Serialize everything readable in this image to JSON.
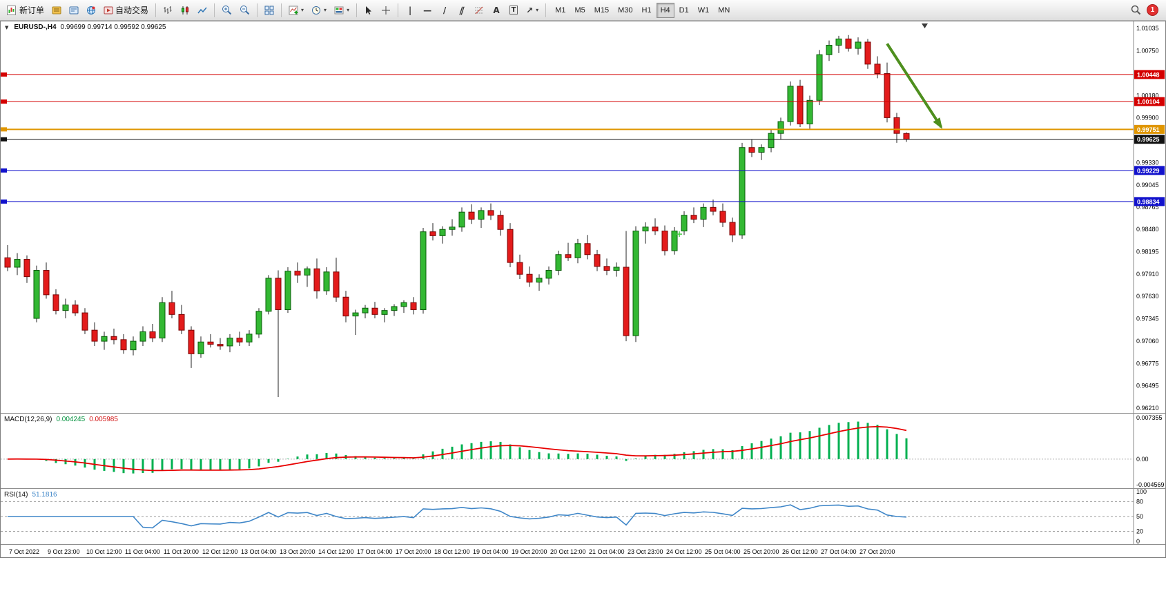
{
  "toolbar": {
    "new_order_label": "新订单",
    "autotrade_label": "自动交易",
    "timeframes": [
      "M1",
      "M5",
      "M15",
      "M30",
      "H1",
      "H4",
      "D1",
      "W1",
      "MN"
    ],
    "active_timeframe": "H4",
    "notification_count": "1",
    "glyphs": {
      "vertical_line": "|",
      "horizontal_line": "—",
      "trendline": "/",
      "channel": "∥",
      "text_tool": "A",
      "text_label_tool": "T",
      "arrows_tool": "↗",
      "caret": "▾"
    }
  },
  "chart": {
    "collapse_arrow": "▼",
    "title": "EURUSD-,H4",
    "ohlc": "0.99699 0.99714 0.99592 0.99625"
  },
  "macd_header": {
    "name": "MACD(12,26,9)",
    "main_value": "0.004245",
    "signal_value": "0.005985"
  },
  "rsi_header": {
    "name": "RSI(14)",
    "value": "51.1816"
  },
  "chart_data": {
    "type": "candlestick",
    "symbol": "EURUSD-",
    "timeframe": "H4",
    "main": {
      "price_min": 0.9621,
      "price_max": 1.01035,
      "axis_ticks": [
        "1.01035",
        "1.00750",
        "1.00180",
        "0.99900",
        "0.99330",
        "0.99045",
        "0.98765",
        "0.98480",
        "0.98195",
        "0.97910",
        "0.97630",
        "0.97345",
        "0.97060",
        "0.96775",
        "0.96495",
        "0.96210"
      ],
      "hlines": [
        {
          "price": 1.00448,
          "label": "1.00448",
          "color": "#d40000",
          "width": 1,
          "type": "resistance"
        },
        {
          "price": 1.00104,
          "label": "1.00104",
          "color": "#d40000",
          "width": 1,
          "type": "resistance"
        },
        {
          "price": 0.99751,
          "label": "0.99751",
          "color": "#e09600",
          "width": 2,
          "type": "pivot"
        },
        {
          "price": 0.99625,
          "label": "0.99625",
          "color": "#111111",
          "width": 1,
          "type": "current-price"
        },
        {
          "price": 0.99229,
          "label": "0.99229",
          "color": "#1212cc",
          "width": 1,
          "type": "support"
        },
        {
          "price": 0.98834,
          "label": "0.98834",
          "color": "#1212cc",
          "width": 1,
          "type": "support"
        }
      ],
      "colors": {
        "bull": "#33b833",
        "bull_border": "#0a5c0a",
        "bear": "#e31b1b",
        "bear_border": "#7a0505",
        "wick": "#222222"
      },
      "arrow_annotation": {
        "from": {
          "index": 91,
          "price": 1.0084
        },
        "to": {
          "index": 96.6,
          "price": 0.9978
        },
        "color": "#4e8f1e"
      },
      "plus_marker": {
        "index": 69.5,
        "price": 0.9842,
        "color": "#44cc44"
      },
      "candles": [
        [
          0.9812,
          0.9828,
          0.9795,
          0.98
        ],
        [
          0.98,
          0.9818,
          0.979,
          0.981
        ],
        [
          0.981,
          0.9815,
          0.978,
          0.9788
        ],
        [
          0.9735,
          0.9802,
          0.973,
          0.9796
        ],
        [
          0.9796,
          0.9806,
          0.976,
          0.9765
        ],
        [
          0.9765,
          0.9772,
          0.974,
          0.9745
        ],
        [
          0.9745,
          0.976,
          0.9735,
          0.9752
        ],
        [
          0.9752,
          0.9758,
          0.9738,
          0.9742
        ],
        [
          0.9742,
          0.9748,
          0.9715,
          0.972
        ],
        [
          0.972,
          0.973,
          0.97,
          0.9706
        ],
        [
          0.9706,
          0.9718,
          0.9695,
          0.9712
        ],
        [
          0.9712,
          0.9722,
          0.9702,
          0.9708
        ],
        [
          0.9708,
          0.9715,
          0.969,
          0.9695
        ],
        [
          0.9695,
          0.9712,
          0.9688,
          0.9706
        ],
        [
          0.9706,
          0.9725,
          0.97,
          0.9718
        ],
        [
          0.9718,
          0.9728,
          0.9705,
          0.971
        ],
        [
          0.971,
          0.9762,
          0.9705,
          0.9755
        ],
        [
          0.9755,
          0.977,
          0.9735,
          0.974
        ],
        [
          0.974,
          0.9752,
          0.9715,
          0.972
        ],
        [
          0.972,
          0.9725,
          0.9672,
          0.969
        ],
        [
          0.969,
          0.9712,
          0.9685,
          0.9705
        ],
        [
          0.9705,
          0.9715,
          0.9698,
          0.9702
        ],
        [
          0.9702,
          0.971,
          0.9695,
          0.97
        ],
        [
          0.97,
          0.9715,
          0.9692,
          0.971
        ],
        [
          0.971,
          0.9718,
          0.97,
          0.9705
        ],
        [
          0.9705,
          0.972,
          0.97,
          0.9715
        ],
        [
          0.9715,
          0.9748,
          0.971,
          0.9744
        ],
        [
          0.9744,
          0.979,
          0.974,
          0.9786
        ],
        [
          0.9786,
          0.9796,
          0.9635,
          0.9746
        ],
        [
          0.9746,
          0.98,
          0.9742,
          0.9795
        ],
        [
          0.9795,
          0.9806,
          0.978,
          0.979
        ],
        [
          0.979,
          0.9801,
          0.9775,
          0.9798
        ],
        [
          0.9798,
          0.9811,
          0.976,
          0.977
        ],
        [
          0.977,
          0.98,
          0.9765,
          0.9794
        ],
        [
          0.9794,
          0.9812,
          0.9756,
          0.9762
        ],
        [
          0.9762,
          0.977,
          0.973,
          0.9738
        ],
        [
          0.9738,
          0.9746,
          0.9714,
          0.9742
        ],
        [
          0.9742,
          0.9752,
          0.9735,
          0.9748
        ],
        [
          0.9748,
          0.9756,
          0.9735,
          0.974
        ],
        [
          0.974,
          0.9748,
          0.973,
          0.9745
        ],
        [
          0.9745,
          0.9753,
          0.9738,
          0.975
        ],
        [
          0.975,
          0.9758,
          0.9742,
          0.9755
        ],
        [
          0.9755,
          0.9762,
          0.974,
          0.9746
        ],
        [
          0.9746,
          0.985,
          0.9741,
          0.9845
        ],
        [
          0.9845,
          0.9856,
          0.9834,
          0.984
        ],
        [
          0.984,
          0.9852,
          0.983,
          0.9848
        ],
        [
          0.9848,
          0.9861,
          0.984,
          0.9851
        ],
        [
          0.9851,
          0.9876,
          0.9845,
          0.987
        ],
        [
          0.987,
          0.988,
          0.9855,
          0.9861
        ],
        [
          0.9861,
          0.9876,
          0.985,
          0.9872
        ],
        [
          0.9872,
          0.9881,
          0.986,
          0.9866
        ],
        [
          0.9866,
          0.9872,
          0.984,
          0.9848
        ],
        [
          0.9848,
          0.9856,
          0.98,
          0.9806
        ],
        [
          0.9806,
          0.9816,
          0.9785,
          0.9791
        ],
        [
          0.9791,
          0.9801,
          0.9775,
          0.9781
        ],
        [
          0.9781,
          0.9791,
          0.977,
          0.9786
        ],
        [
          0.9786,
          0.9801,
          0.9778,
          0.9796
        ],
        [
          0.9796,
          0.9821,
          0.979,
          0.9816
        ],
        [
          0.9816,
          0.9831,
          0.9808,
          0.9812
        ],
        [
          0.9812,
          0.9836,
          0.9805,
          0.983
        ],
        [
          0.983,
          0.9841,
          0.981,
          0.9816
        ],
        [
          0.9816,
          0.9822,
          0.9795,
          0.9801
        ],
        [
          0.9801,
          0.9811,
          0.979,
          0.9796
        ],
        [
          0.9796,
          0.9806,
          0.9788,
          0.98
        ],
        [
          0.98,
          0.9846,
          0.9706,
          0.9713
        ],
        [
          0.9713,
          0.9852,
          0.9705,
          0.9846
        ],
        [
          0.9846,
          0.9857,
          0.983,
          0.9851
        ],
        [
          0.9851,
          0.9862,
          0.9841,
          0.9846
        ],
        [
          0.9846,
          0.9853,
          0.9815,
          0.9821
        ],
        [
          0.9821,
          0.9851,
          0.9816,
          0.9846
        ],
        [
          0.9846,
          0.9871,
          0.9841,
          0.9866
        ],
        [
          0.9866,
          0.9876,
          0.9856,
          0.9861
        ],
        [
          0.9861,
          0.9881,
          0.9851,
          0.9876
        ],
        [
          0.9876,
          0.9886,
          0.9866,
          0.9871
        ],
        [
          0.9871,
          0.9881,
          0.9851,
          0.9857
        ],
        [
          0.9857,
          0.9863,
          0.9832,
          0.9841
        ],
        [
          0.9841,
          0.9958,
          0.9836,
          0.9952
        ],
        [
          0.9952,
          0.9962,
          0.994,
          0.9946
        ],
        [
          0.9946,
          0.9956,
          0.9936,
          0.9952
        ],
        [
          0.9952,
          0.9975,
          0.9946,
          0.997
        ],
        [
          0.997,
          0.999,
          0.9962,
          0.9985
        ],
        [
          0.9985,
          1.0036,
          0.998,
          1.003
        ],
        [
          1.003,
          1.0038,
          0.9978,
          0.9982
        ],
        [
          0.9982,
          1.0018,
          0.9976,
          1.0012
        ],
        [
          1.0012,
          1.0076,
          1.0006,
          1.007
        ],
        [
          1.007,
          1.0088,
          1.0062,
          1.0082
        ],
        [
          1.0082,
          1.0094,
          1.0072,
          1.009
        ],
        [
          1.009,
          1.0095,
          1.0074,
          1.0078
        ],
        [
          1.0078,
          1.0092,
          1.007,
          1.0086
        ],
        [
          1.0086,
          1.009,
          1.0052,
          1.0058
        ],
        [
          1.0058,
          1.0068,
          1.004,
          1.0046
        ],
        [
          1.0046,
          1.006,
          0.9984,
          0.999
        ],
        [
          0.999,
          0.9996,
          0.9958,
          0.997
        ],
        [
          0.99699,
          0.99714,
          0.99592,
          0.99625
        ]
      ]
    },
    "x_axis_labels": [
      "7 Oct 2022",
      "9 Oct 23:00",
      "10 Oct 12:00",
      "11 Oct 04:00",
      "11 Oct 20:00",
      "12 Oct 12:00",
      "13 Oct 04:00",
      "13 Oct 20:00",
      "14 Oct 12:00",
      "17 Oct 04:00",
      "17 Oct 20:00",
      "18 Oct 12:00",
      "19 Oct 04:00",
      "19 Oct 20:00",
      "20 Oct 12:00",
      "21 Oct 04:00",
      "23 Oct 23:00",
      "24 Oct 12:00",
      "25 Oct 04:00",
      "25 Oct 20:00",
      "26 Oct 12:00",
      "27 Oct 04:00",
      "27 Oct 20:00"
    ],
    "label_every_n_candles": 4,
    "macd": {
      "params": [
        12,
        26,
        9
      ],
      "axis_max": 0.007355,
      "axis_min": -0.004569,
      "axis_ticks": [
        "0.007355",
        "0.00",
        "-0.004569"
      ],
      "histogram_color": "#00b050",
      "signal_color": "#e80000",
      "main_value": 0.004245,
      "signal_value": 0.005985
    },
    "rsi": {
      "period": 14,
      "value": 51.1816,
      "axis_ticks": [
        100,
        80,
        50,
        20,
        0
      ],
      "levels": [
        80,
        50,
        20
      ],
      "line_color": "#3e86c8"
    }
  }
}
